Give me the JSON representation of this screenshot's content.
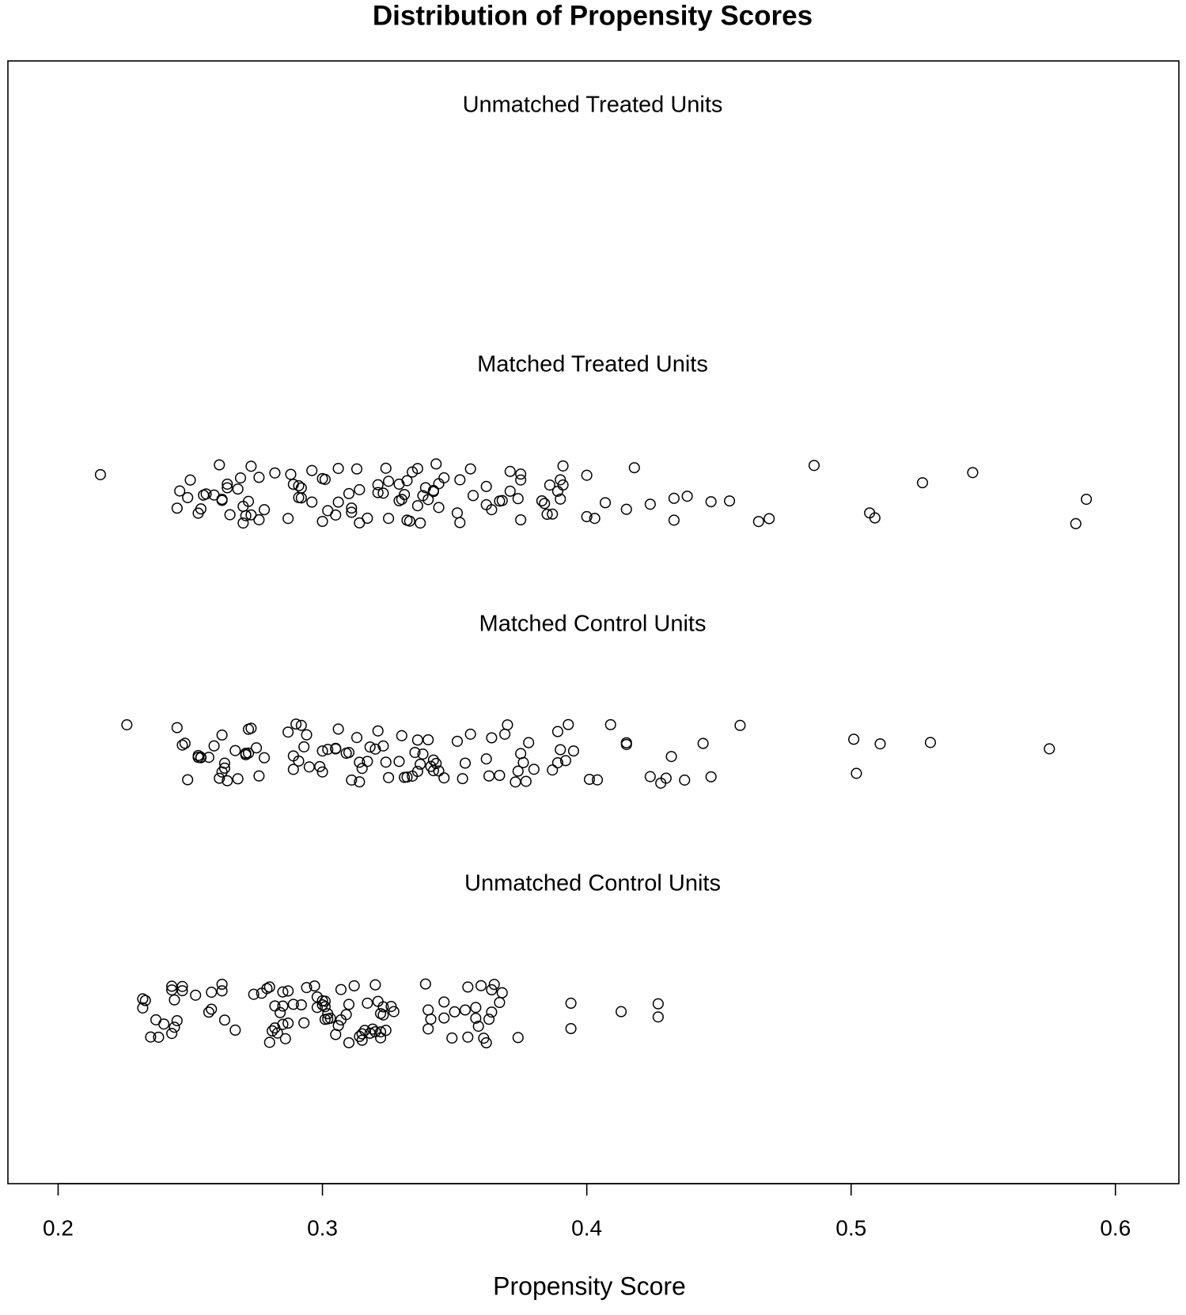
{
  "chart_data": {
    "type": "strip",
    "title": "Distribution of Propensity Scores",
    "xlabel": "Propensity Score",
    "xlim": [
      0.181,
      0.624
    ],
    "xticks": [
      0.2,
      0.3,
      0.4,
      0.5,
      0.6
    ],
    "series": [
      {
        "name": "Unmatched Treated Units",
        "color": "#000000",
        "values": []
      },
      {
        "name": "Matched Treated Units",
        "color": "#000000",
        "values": [
          0.216,
          0.245,
          0.249,
          0.246,
          0.25,
          0.253,
          0.254,
          0.256,
          0.255,
          0.259,
          0.261,
          0.262,
          0.262,
          0.264,
          0.265,
          0.264,
          0.268,
          0.269,
          0.27,
          0.27,
          0.271,
          0.273,
          0.273,
          0.272,
          0.276,
          0.276,
          0.278,
          0.282,
          0.287,
          0.288,
          0.289,
          0.291,
          0.291,
          0.292,
          0.292,
          0.296,
          0.296,
          0.3,
          0.3,
          0.301,
          0.302,
          0.305,
          0.306,
          0.306,
          0.31,
          0.311,
          0.311,
          0.313,
          0.314,
          0.314,
          0.317,
          0.321,
          0.321,
          0.323,
          0.324,
          0.325,
          0.325,
          0.329,
          0.329,
          0.33,
          0.331,
          0.332,
          0.332,
          0.333,
          0.334,
          0.336,
          0.336,
          0.337,
          0.338,
          0.339,
          0.34,
          0.342,
          0.342,
          0.343,
          0.344,
          0.344,
          0.346,
          0.351,
          0.352,
          0.352,
          0.356,
          0.357,
          0.362,
          0.362,
          0.364,
          0.367,
          0.368,
          0.371,
          0.371,
          0.374,
          0.375,
          0.375,
          0.375,
          0.383,
          0.384,
          0.385,
          0.386,
          0.387,
          0.389,
          0.39,
          0.39,
          0.391,
          0.391,
          0.4,
          0.4,
          0.403,
          0.407,
          0.415,
          0.418,
          0.424,
          0.433,
          0.433,
          0.438,
          0.447,
          0.454,
          0.465,
          0.469,
          0.486,
          0.507,
          0.509,
          0.527,
          0.546,
          0.585,
          0.589
        ]
      },
      {
        "name": "Matched Control Units",
        "color": "#000000",
        "values": [
          0.226,
          0.245,
          0.247,
          0.248,
          0.249,
          0.253,
          0.253,
          0.254,
          0.254,
          0.257,
          0.259,
          0.261,
          0.262,
          0.262,
          0.263,
          0.263,
          0.264,
          0.267,
          0.268,
          0.271,
          0.271,
          0.272,
          0.272,
          0.273,
          0.275,
          0.276,
          0.278,
          0.287,
          0.289,
          0.289,
          0.29,
          0.291,
          0.292,
          0.293,
          0.294,
          0.295,
          0.299,
          0.3,
          0.3,
          0.302,
          0.305,
          0.305,
          0.306,
          0.309,
          0.31,
          0.311,
          0.313,
          0.314,
          0.314,
          0.315,
          0.317,
          0.318,
          0.32,
          0.321,
          0.323,
          0.324,
          0.325,
          0.329,
          0.33,
          0.331,
          0.332,
          0.334,
          0.335,
          0.336,
          0.336,
          0.337,
          0.338,
          0.34,
          0.341,
          0.342,
          0.342,
          0.343,
          0.344,
          0.346,
          0.351,
          0.353,
          0.354,
          0.356,
          0.362,
          0.363,
          0.364,
          0.367,
          0.369,
          0.37,
          0.373,
          0.374,
          0.375,
          0.376,
          0.377,
          0.378,
          0.38,
          0.387,
          0.389,
          0.389,
          0.39,
          0.392,
          0.393,
          0.395,
          0.401,
          0.404,
          0.409,
          0.415,
          0.415,
          0.424,
          0.428,
          0.43,
          0.432,
          0.437,
          0.444,
          0.447,
          0.458,
          0.501,
          0.502,
          0.511,
          0.53,
          0.575
        ]
      },
      {
        "name": "Unmatched Control Units",
        "color": "#000000",
        "values": [
          0.232,
          0.232,
          0.233,
          0.235,
          0.237,
          0.238,
          0.24,
          0.243,
          0.243,
          0.243,
          0.244,
          0.244,
          0.245,
          0.247,
          0.247,
          0.252,
          0.257,
          0.258,
          0.258,
          0.262,
          0.262,
          0.263,
          0.267,
          0.274,
          0.277,
          0.279,
          0.28,
          0.28,
          0.281,
          0.282,
          0.282,
          0.283,
          0.284,
          0.285,
          0.285,
          0.285,
          0.286,
          0.287,
          0.287,
          0.289,
          0.292,
          0.293,
          0.294,
          0.297,
          0.298,
          0.298,
          0.3,
          0.3,
          0.301,
          0.301,
          0.301,
          0.302,
          0.302,
          0.303,
          0.305,
          0.306,
          0.307,
          0.307,
          0.309,
          0.31,
          0.31,
          0.312,
          0.314,
          0.315,
          0.315,
          0.316,
          0.317,
          0.318,
          0.319,
          0.32,
          0.32,
          0.321,
          0.322,
          0.322,
          0.322,
          0.323,
          0.323,
          0.324,
          0.326,
          0.327,
          0.339,
          0.34,
          0.34,
          0.341,
          0.346,
          0.346,
          0.349,
          0.35,
          0.354,
          0.355,
          0.355,
          0.358,
          0.358,
          0.359,
          0.36,
          0.361,
          0.362,
          0.363,
          0.364,
          0.364,
          0.365,
          0.367,
          0.368,
          0.374,
          0.394,
          0.394,
          0.413,
          0.427,
          0.427
        ]
      }
    ]
  }
}
